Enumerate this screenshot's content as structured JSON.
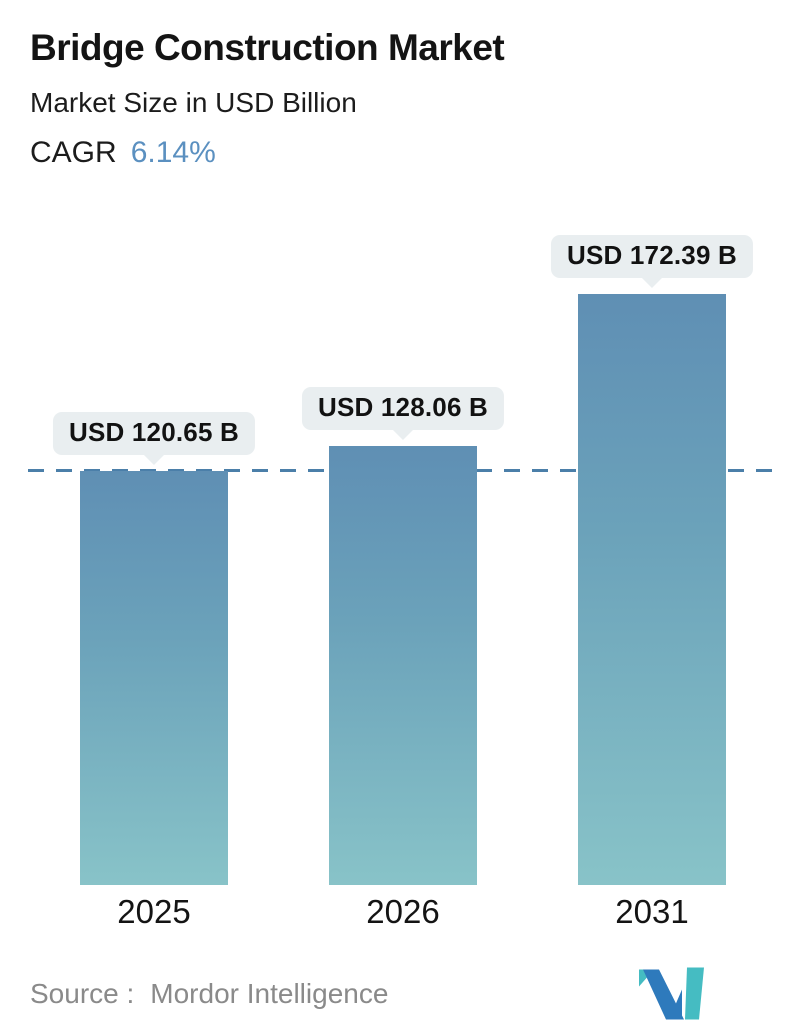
{
  "header": {
    "title": "Bridge Construction Market",
    "subtitle": "Market Size in USD Billion",
    "cagr_label": "CAGR",
    "cagr_value": "6.14%"
  },
  "chart_data": {
    "type": "bar",
    "categories": [
      "2025",
      "2026",
      "2031"
    ],
    "values": [
      120.65,
      128.06,
      172.39
    ],
    "value_labels": [
      "USD 120.65 B",
      "USD 128.06 B",
      "USD 172.39 B"
    ],
    "title": "Bridge Construction Market",
    "subtitle": "Market Size in USD Billion",
    "cagr": "6.14%",
    "unit": "USD Billion",
    "ylim": [
      0,
      180
    ],
    "grid": "off",
    "legend": "none",
    "reference_line": {
      "style": "dashed",
      "at_value": 120.65,
      "color": "#4b7fa9"
    },
    "bar_gradient": {
      "top": "#5f8fb4",
      "bottom": "#88c3c8"
    }
  },
  "footer": {
    "source_label": "Source :",
    "source_name": "Mordor Intelligence",
    "logo": "mordor-intelligence-logo"
  },
  "colors": {
    "accent_blue": "#5b90c0",
    "bubble_bg": "#e9eef0",
    "dash_line": "#4b7fa9",
    "text_dark": "#141414",
    "source_gray": "#8a8a8a",
    "logo_blue": "#2e7abc",
    "logo_teal": "#45bcc2"
  }
}
